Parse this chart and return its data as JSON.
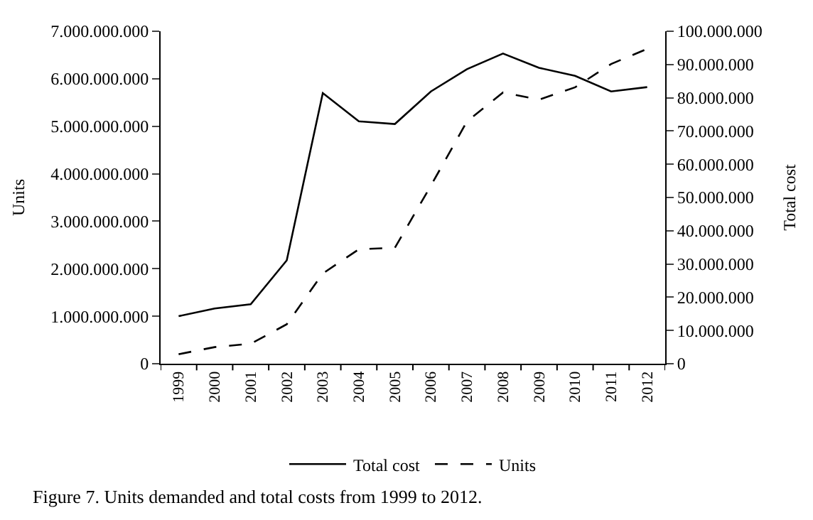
{
  "chart_data": {
    "type": "line",
    "ylabel": "Units",
    "y2label": "Total cost",
    "annotations": [
      "Figure 7. Units demanded and total costs from 1999 to 2012."
    ],
    "categories": [
      "1999",
      "2000",
      "2001",
      "2002",
      "2003",
      "2004",
      "2005",
      "2006",
      "2007",
      "2008",
      "2009",
      "2010",
      "2011",
      "2012"
    ],
    "series": [
      {
        "name": "Total cost",
        "color": "#000000",
        "axis": "y2",
        "line_style": "solid",
        "values": [
          14300000,
          16600000,
          17900000,
          31100000,
          81400000,
          72900000,
          72100000,
          81900000,
          88600000,
          93300000,
          89000000,
          86600000,
          81900000,
          83200000
        ]
      },
      {
        "name": "Units",
        "color": "#000000",
        "line_style": "dashed",
        "values": [
          200000000,
          350000000,
          420000000,
          830000000,
          1900000000,
          2410000000,
          2440000000,
          3750000000,
          5100000000,
          5710000000,
          5560000000,
          5820000000,
          6310000000,
          6630000000
        ]
      }
    ],
    "ylim": [
      0,
      7000000000
    ],
    "yticks": [
      {
        "value": 0,
        "label": "0"
      },
      {
        "value": 1000000000,
        "label": "1.000.000.000"
      },
      {
        "value": 2000000000,
        "label": "2.000.000.000"
      },
      {
        "value": 3000000000,
        "label": "3.000.000.000"
      },
      {
        "value": 4000000000,
        "label": "4.000.000.000"
      },
      {
        "value": 5000000000,
        "label": "5.000.000.000"
      },
      {
        "value": 6000000000,
        "label": "6.000.000.000"
      },
      {
        "value": 7000000000,
        "label": "7.000.000.000"
      }
    ],
    "y2lim": [
      0,
      100000000
    ],
    "y2ticks": [
      {
        "value": 0,
        "label": "0"
      },
      {
        "value": 10000000,
        "label": "10.000.000"
      },
      {
        "value": 20000000,
        "label": "20.000.000"
      },
      {
        "value": 30000000,
        "label": "30.000.000"
      },
      {
        "value": 40000000,
        "label": "40.000.000"
      },
      {
        "value": 50000000,
        "label": "50.000.000"
      },
      {
        "value": 60000000,
        "label": "60.000.000"
      },
      {
        "value": 70000000,
        "label": "70.000.000"
      },
      {
        "value": 80000000,
        "label": "80.000.000"
      },
      {
        "value": 90000000,
        "label": "90.000.000"
      },
      {
        "value": 100000000,
        "label": "100.000.000"
      }
    ],
    "legend": "bottom",
    "marker": "none"
  }
}
